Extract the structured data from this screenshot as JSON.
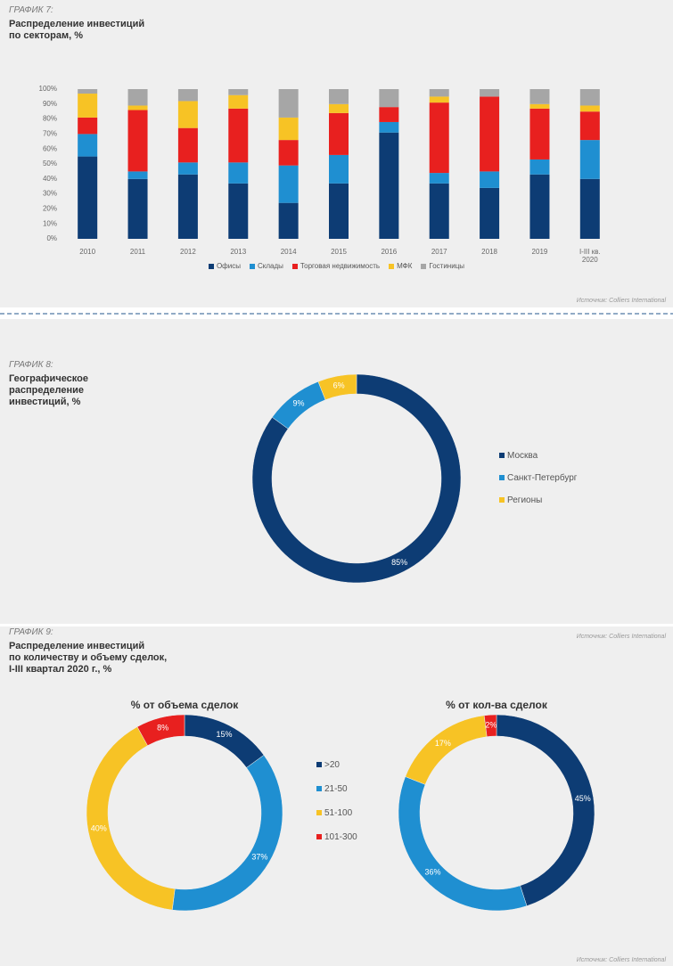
{
  "chart_data": [
    {
      "type": "stacked_bar",
      "label": "ГРАФИК 7:",
      "title": "Распределение инвестиций\nпо секторам, %",
      "categories": [
        "2010",
        "2011",
        "2012",
        "2013",
        "2014",
        "2015",
        "2016",
        "2017",
        "2018",
        "2019",
        "I-III кв.\n2020"
      ],
      "series": [
        {
          "name": "Офисы",
          "color": "#0d3c74",
          "values": [
            55,
            40,
            43,
            37,
            24,
            37,
            71,
            37,
            34,
            43,
            40
          ]
        },
        {
          "name": "Склады",
          "color": "#1f8fd1",
          "values": [
            15,
            5,
            8,
            14,
            25,
            19,
            7,
            7,
            11,
            10,
            26
          ]
        },
        {
          "name": "Торговая недвижимость",
          "color": "#e8201f",
          "values": [
            11,
            41,
            23,
            36,
            17,
            28,
            10,
            47,
            50,
            34,
            19
          ]
        },
        {
          "name": "МФК",
          "color": "#f7c325",
          "values": [
            16,
            3,
            18,
            9,
            15,
            6,
            0,
            4,
            0,
            3,
            4
          ]
        },
        {
          "name": "Гостиницы",
          "color": "#a6a6a6",
          "values": [
            3,
            11,
            8,
            4,
            19,
            10,
            12,
            5,
            5,
            10,
            11
          ]
        }
      ],
      "ylim": [
        0,
        100
      ],
      "yticks": [
        {
          "value": 0,
          "label": "0%"
        },
        {
          "value": 10,
          "label": "10%"
        },
        {
          "value": 20,
          "label": "20%"
        },
        {
          "value": 30,
          "label": "30%"
        },
        {
          "value": 40,
          "label": "40%"
        },
        {
          "value": 50,
          "label": "50%"
        },
        {
          "value": 60,
          "label": "60%"
        },
        {
          "value": 70,
          "label": "70%"
        },
        {
          "value": 80,
          "label": "80%"
        },
        {
          "value": 90,
          "label": "90%"
        },
        {
          "value": 100,
          "label": "100%"
        }
      ],
      "grid": false,
      "legend": "bottom",
      "source": "Источник: Colliers International"
    },
    {
      "type": "donut",
      "label": "ГРАФИК 8:",
      "title": "Географическое\nраспределение\nинвестиций, %",
      "categories": [
        "Москва",
        "Санкт-Петербург",
        "Регионы"
      ],
      "colors": [
        "#0d3c74",
        "#1f8fd1",
        "#f7c325"
      ],
      "series": [
        {
          "values": [
            85,
            9,
            6
          ],
          "value_labels": [
            "85%",
            "9%",
            "6%"
          ]
        }
      ],
      "legend": "right",
      "source": "Источник: Colliers International"
    },
    {
      "type": "donut",
      "label": "ГРАФИК 9:",
      "title": "Распределение инвестиций\nпо количеству и объему сделок,\nI-III  квартал 2020 г., %",
      "categories": [
        ">20",
        "21-50",
        "51-100",
        "101-300"
      ],
      "colors": [
        "#0d3c74",
        "#1f8fd1",
        "#f7c325",
        "#e8201f"
      ],
      "series": [
        {
          "name": "% от объема сделок",
          "values": [
            15,
            37,
            40,
            8
          ],
          "value_labels": [
            "15%",
            "37%",
            "40%",
            "8%"
          ]
        },
        {
          "name": "% от кол-ва сделок",
          "values": [
            45,
            36,
            17,
            2
          ],
          "value_labels": [
            "45%",
            "36%",
            "17%",
            "2%"
          ]
        }
      ],
      "legend": "center",
      "source": "Источник: Colliers International"
    }
  ]
}
